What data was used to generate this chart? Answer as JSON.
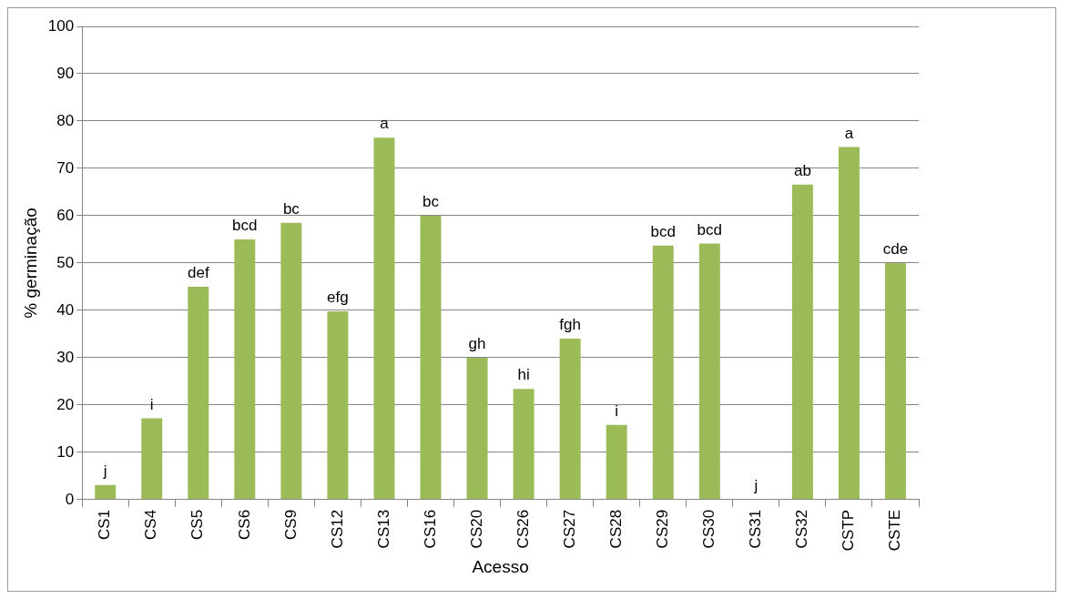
{
  "chart_data": {
    "type": "bar",
    "xlabel": "Acesso",
    "ylabel": "% germinação",
    "categories": [
      "CS1",
      "CS4",
      "CS5",
      "CS6",
      "CS9",
      "CS12",
      "CS13",
      "CS16",
      "CS20",
      "CS26",
      "CS27",
      "CS28",
      "CS29",
      "CS30",
      "CS31",
      "CS32",
      "CSTP",
      "CSTE"
    ],
    "values": [
      3.1,
      17.2,
      45,
      55,
      58.5,
      39.8,
      76.5,
      60,
      30,
      23.4,
      34,
      15.8,
      53.7,
      54.1,
      0,
      66.6,
      74.5,
      50
    ],
    "color": "#9bbb59",
    "ylim": [
      0,
      100
    ],
    "yticks": [
      0,
      10,
      20,
      30,
      40,
      50,
      60,
      70,
      80,
      90,
      100
    ],
    "grid": "y",
    "annotations": [
      {
        "text": "j",
        "x": "CS1",
        "y": 3.1
      },
      {
        "text": "i",
        "x": "CS4",
        "y": 17.2
      },
      {
        "text": "def",
        "x": "CS5",
        "y": 45
      },
      {
        "text": "bcd",
        "x": "CS6",
        "y": 55
      },
      {
        "text": "bc",
        "x": "CS9",
        "y": 58.5
      },
      {
        "text": "efg",
        "x": "CS12",
        "y": 39.8
      },
      {
        "text": "a",
        "x": "CS13",
        "y": 76.5
      },
      {
        "text": "bc",
        "x": "CS16",
        "y": 60
      },
      {
        "text": "gh",
        "x": "CS20",
        "y": 30
      },
      {
        "text": "hi",
        "x": "CS26",
        "y": 23.4
      },
      {
        "text": "fgh",
        "x": "CS27",
        "y": 34
      },
      {
        "text": "i",
        "x": "CS28",
        "y": 15.8
      },
      {
        "text": "bcd",
        "x": "CS29",
        "y": 53.7
      },
      {
        "text": "bcd",
        "x": "CS30",
        "y": 54.1
      },
      {
        "text": "j",
        "x": "CS31",
        "y": 0
      },
      {
        "text": "ab",
        "x": "CS32",
        "y": 66.6
      },
      {
        "text": "a",
        "x": "CSTP",
        "y": 74.5
      },
      {
        "text": "cde",
        "x": "CSTE",
        "y": 50
      }
    ]
  }
}
